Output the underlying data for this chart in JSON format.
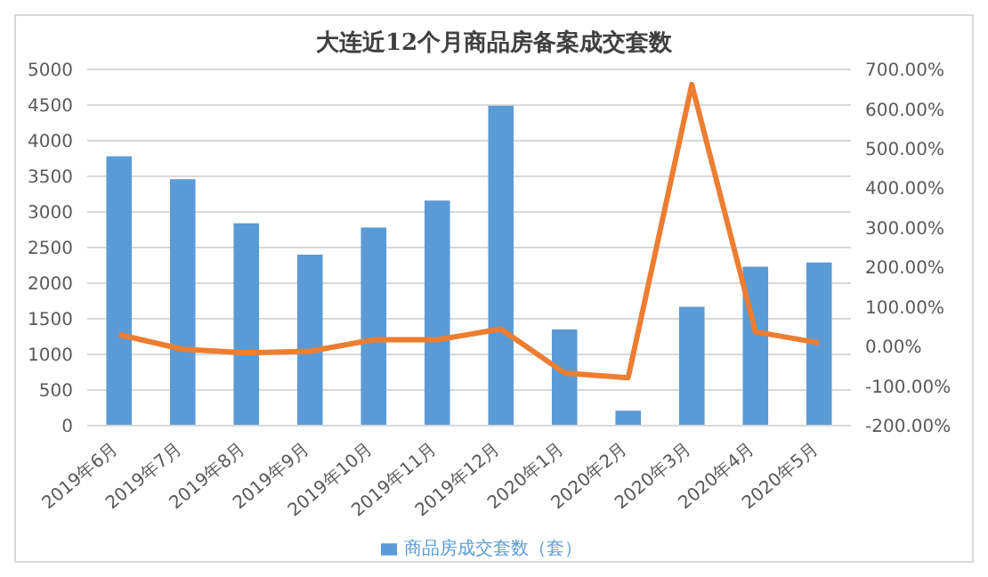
{
  "chart_data": {
    "type": "bar",
    "title": "大连近12个月商品房备案成交套数",
    "categories": [
      "2019年6月",
      "2019年7月",
      "2019年8月",
      "2019年9月",
      "2019年10月",
      "2019年11月",
      "2019年12月",
      "2020年1月",
      "2020年2月",
      "2020年3月",
      "2020年4月",
      "2020年5月"
    ],
    "series": [
      {
        "name": "商品房成交套数（套）",
        "color": "#5b9bd5",
        "values": [
          3780,
          3460,
          2840,
          2400,
          2780,
          3160,
          4490,
          1350,
          210,
          1670,
          2230,
          2290
        ]
      },
      {
        "type": "line",
        "axis": "y2",
        "color": "#ed7d31",
        "values": [
          30,
          -7,
          -16,
          -12,
          17,
          17,
          44,
          -67,
          -79,
          662,
          37,
          9
        ]
      }
    ],
    "ylim": [
      0,
      5000
    ],
    "yticks": [
      0,
      500,
      1000,
      1500,
      2000,
      2500,
      3000,
      3500,
      4000,
      4500,
      5000
    ],
    "y2lim": [
      -200,
      700
    ],
    "y2ticks": [
      {
        "value": -200,
        "label": "-200.00%"
      },
      {
        "value": -100,
        "label": "-100.00%"
      },
      {
        "value": 0,
        "label": "0.00%"
      },
      {
        "value": 100,
        "label": "100.00%"
      },
      {
        "value": 200,
        "label": "200.00%"
      },
      {
        "value": 300,
        "label": "300.00%"
      },
      {
        "value": 400,
        "label": "400.00%"
      },
      {
        "value": 500,
        "label": "500.00%"
      },
      {
        "value": 600,
        "label": "600.00%"
      },
      {
        "value": 700,
        "label": "700.00%"
      }
    ],
    "grid": "y",
    "legend": "bottom",
    "marker": "none"
  }
}
